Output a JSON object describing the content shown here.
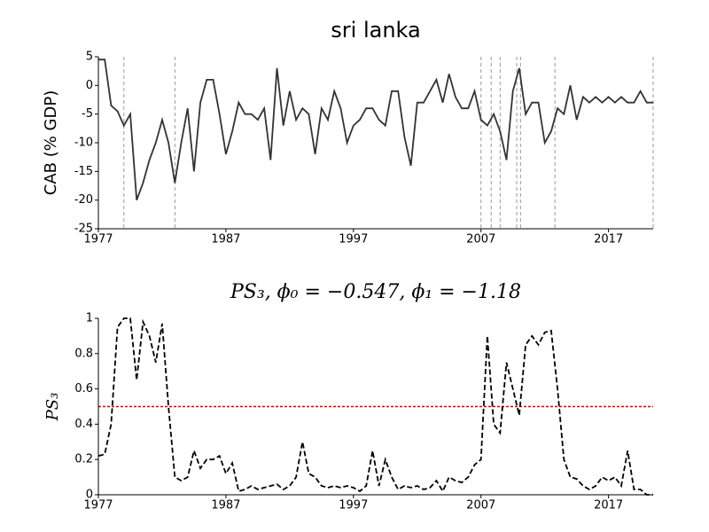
{
  "chart_data": [
    {
      "type": "line",
      "title": "sri lanka",
      "ylabel": "CAB (% GDP)",
      "color": "#333333",
      "x": [
        1977,
        1977.5,
        1978,
        1978.5,
        1979,
        1979.5,
        1980,
        1980.5,
        1981,
        1981.5,
        1982,
        1982.5,
        1983,
        1983.5,
        1984,
        1984.5,
        1985,
        1985.5,
        1986,
        1986.5,
        1987,
        1987.5,
        1988,
        1988.5,
        1989,
        1989.5,
        1990,
        1990.5,
        1991,
        1991.5,
        1992,
        1992.5,
        1993,
        1993.5,
        1994,
        1994.5,
        1995,
        1995.5,
        1996,
        1996.5,
        1997,
        1997.5,
        1998,
        1998.5,
        1999,
        1999.5,
        2000,
        2000.5,
        2001,
        2001.5,
        2002,
        2002.5,
        2003,
        2003.5,
        2004,
        2004.5,
        2005,
        2005.5,
        2006,
        2006.5,
        2007,
        2007.5,
        2008,
        2008.5,
        2009,
        2009.5,
        2010,
        2010.5,
        2011,
        2011.5,
        2012,
        2012.5,
        2013,
        2013.5,
        2014,
        2014.5,
        2015,
        2015.5,
        2016,
        2016.5,
        2017,
        2017.5,
        2018,
        2018.5,
        2019,
        2019.5,
        2020,
        2020.5
      ],
      "values": [
        4.5,
        4.5,
        -3.5,
        -4.5,
        -7,
        -5,
        -20,
        -17,
        -13,
        -10,
        -6,
        -10,
        -17,
        -10,
        -4,
        -15,
        -3,
        1,
        1,
        -5,
        -12,
        -8,
        -3,
        -5,
        -5,
        -6,
        -4,
        -13,
        3,
        -7,
        -1,
        -6,
        -4,
        -5,
        -12,
        -4,
        -6,
        -1,
        -4,
        -10,
        -7,
        -6,
        -4,
        -4,
        -6,
        -7,
        -1,
        -1,
        -9,
        -14,
        -3,
        -3,
        -1,
        1,
        -3,
        2,
        -2,
        -4,
        -4,
        -1,
        -6,
        -7,
        -5,
        -8,
        -13,
        -1,
        3,
        -5,
        -3,
        -3,
        -10,
        -8,
        -4,
        -5,
        0,
        -6,
        -2,
        -3,
        -2,
        -3,
        -2,
        -3,
        -2,
        -3,
        -3,
        -1,
        -3,
        -3
      ],
      "vlines": [
        1979,
        1983,
        2007,
        2007.8,
        2008.5,
        2009.8,
        2010.1,
        2012.8,
        2020.5
      ],
      "xlim": [
        1977,
        2020.5
      ],
      "xticks": [
        1977,
        1987,
        1997,
        2007,
        2017
      ],
      "ylim": [
        -25,
        5
      ],
      "yticks": [
        -25,
        -20,
        -15,
        -10,
        -5,
        0,
        5
      ]
    },
    {
      "type": "line",
      "title": "PS₃, ϕ₀ = −0.547, ϕ₁ = −1.18",
      "ylabel": "PS₃",
      "color": "#000000",
      "dashed": true,
      "x": [
        1977,
        1977.5,
        1978,
        1978.5,
        1979,
        1979.5,
        1980,
        1980.5,
        1981,
        1981.5,
        1982,
        1982.5,
        1983,
        1983.5,
        1984,
        1984.5,
        1985,
        1985.5,
        1986,
        1986.5,
        1987,
        1987.5,
        1988,
        1988.5,
        1989,
        1989.5,
        1990,
        1990.5,
        1991,
        1991.5,
        1992,
        1992.5,
        1993,
        1993.5,
        1994,
        1994.5,
        1995,
        1995.5,
        1996,
        1996.5,
        1997,
        1997.5,
        1998,
        1998.5,
        1999,
        1999.5,
        2000,
        2000.5,
        2001,
        2001.5,
        2002,
        2002.5,
        2003,
        2003.5,
        2004,
        2004.5,
        2005,
        2005.5,
        2006,
        2006.5,
        2007,
        2007.5,
        2008,
        2008.5,
        2009,
        2009.5,
        2010,
        2010.5,
        2011,
        2011.5,
        2012,
        2012.5,
        2013,
        2013.5,
        2014,
        2014.5,
        2015,
        2015.5,
        2016,
        2016.5,
        2017,
        2017.5,
        2018,
        2018.5,
        2019,
        2019.5,
        2020,
        2020.5
      ],
      "values": [
        0.22,
        0.23,
        0.4,
        0.95,
        1,
        1,
        0.65,
        0.98,
        0.9,
        0.75,
        0.97,
        0.5,
        0.1,
        0.08,
        0.1,
        0.25,
        0.15,
        0.2,
        0.2,
        0.22,
        0.12,
        0.18,
        0.02,
        0.03,
        0.05,
        0.03,
        0.04,
        0.05,
        0.06,
        0.03,
        0.05,
        0.1,
        0.3,
        0.12,
        0.1,
        0.05,
        0.04,
        0.05,
        0.04,
        0.05,
        0.04,
        0.02,
        0.05,
        0.25,
        0.05,
        0.2,
        0.1,
        0.03,
        0.05,
        0.04,
        0.05,
        0.03,
        0.04,
        0.08,
        0.02,
        0.1,
        0.08,
        0.07,
        0.1,
        0.17,
        0.2,
        0.9,
        0.4,
        0.35,
        0.75,
        0.6,
        0.45,
        0.85,
        0.9,
        0.85,
        0.92,
        0.93,
        0.6,
        0.2,
        0.1,
        0.09,
        0.05,
        0.03,
        0.05,
        0.1,
        0.08,
        0.1,
        0.05,
        0.25,
        0.03,
        0.03,
        0,
        0
      ],
      "hline": 0.5,
      "hline_color": "#dd0000",
      "xlim": [
        1977,
        2020.5
      ],
      "xticks": [
        1977,
        1987,
        1997,
        2007,
        2017
      ],
      "ylim": [
        0,
        1
      ],
      "yticks": [
        0,
        0.2,
        0.4,
        0.6,
        0.8,
        1
      ]
    }
  ]
}
